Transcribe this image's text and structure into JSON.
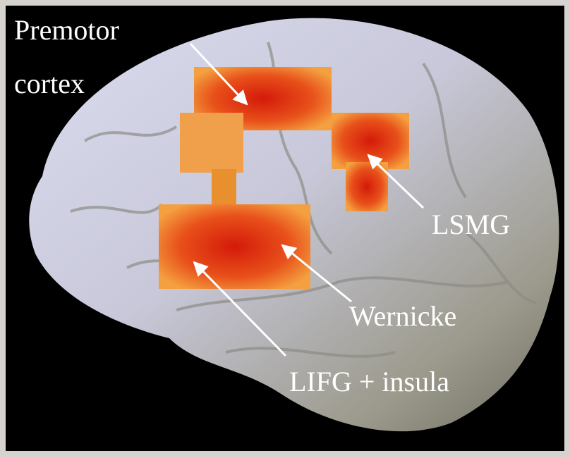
{
  "labels": [
    {
      "lines": [
        "Premotor",
        "cortex"
      ]
    },
    {
      "lines": [
        "LSMG"
      ]
    },
    {
      "lines": [
        "Wernicke"
      ]
    },
    {
      "lines": [
        "LIFG + insula"
      ]
    }
  ]
}
